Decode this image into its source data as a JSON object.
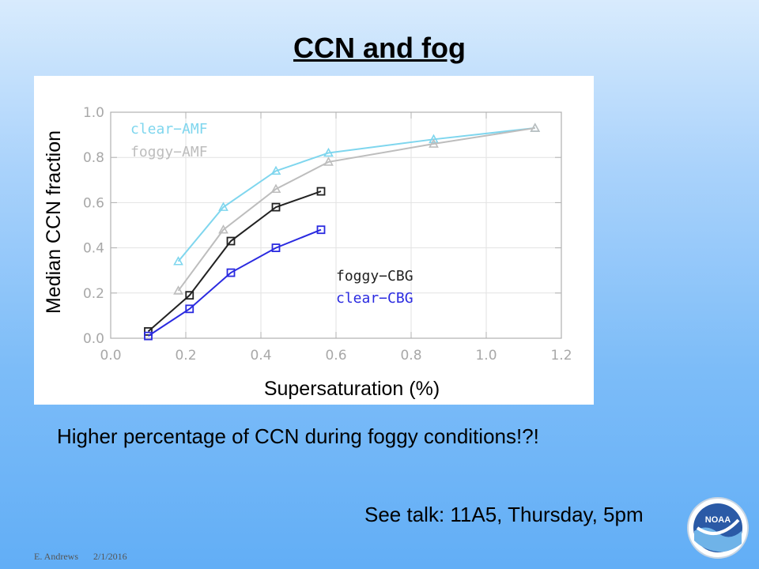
{
  "slide": {
    "title": "CCN and fog",
    "body_text": "Higher percentage of CCN during foggy conditions!?!",
    "talk_text": "See talk: 11A5, Thursday, 5pm",
    "footer_author": "E. Andrews",
    "footer_date": "2/1/2016",
    "logo_text": "NOAA"
  },
  "chart_data": {
    "type": "line",
    "xlabel": "Supersaturation (%)",
    "ylabel": "Median CCN fraction",
    "xlim": [
      0.0,
      1.2
    ],
    "ylim": [
      0.0,
      1.0
    ],
    "xticks": [
      "0.0",
      "0.2",
      "0.4",
      "0.6",
      "0.8",
      "1.0",
      "1.2"
    ],
    "yticks": [
      "0.0",
      "0.2",
      "0.4",
      "0.6",
      "0.8",
      "1.0"
    ],
    "grid": true,
    "series": [
      {
        "name": "clear−AMF",
        "color": "#7fd6ee",
        "marker": "triangle",
        "x": [
          0.18,
          0.3,
          0.44,
          0.58,
          0.86,
          1.13
        ],
        "y": [
          0.34,
          0.58,
          0.74,
          0.82,
          0.88,
          0.93
        ]
      },
      {
        "name": "foggy−AMF",
        "color": "#bdbdbd",
        "marker": "triangle",
        "x": [
          0.18,
          0.3,
          0.44,
          0.58,
          0.86,
          1.13
        ],
        "y": [
          0.21,
          0.48,
          0.66,
          0.78,
          0.86,
          0.93
        ]
      },
      {
        "name": "foggy−CBG",
        "color": "#222222",
        "marker": "square",
        "x": [
          0.1,
          0.21,
          0.32,
          0.44,
          0.56
        ],
        "y": [
          0.03,
          0.19,
          0.43,
          0.58,
          0.65
        ]
      },
      {
        "name": "clear−CBG",
        "color": "#2a2ae0",
        "marker": "square",
        "x": [
          0.1,
          0.21,
          0.32,
          0.44,
          0.56
        ],
        "y": [
          0.01,
          0.13,
          0.29,
          0.4,
          0.48
        ]
      }
    ]
  }
}
